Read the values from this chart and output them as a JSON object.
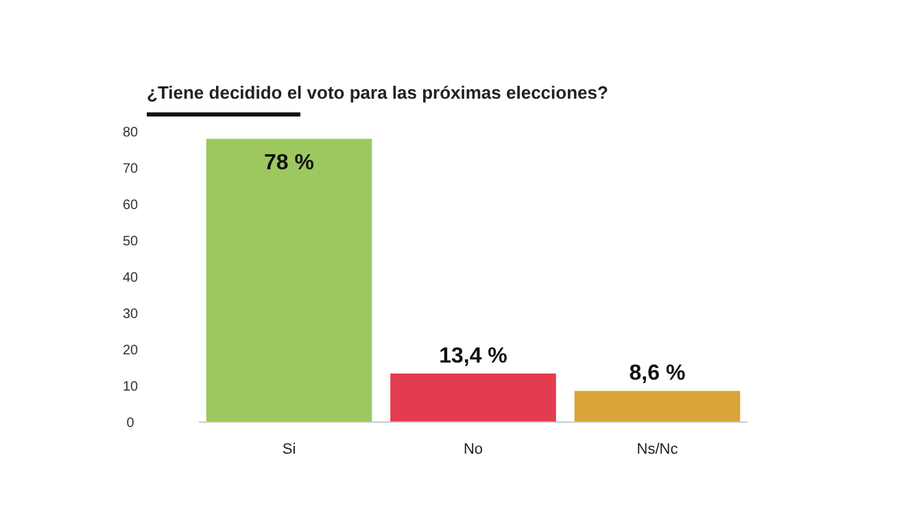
{
  "chart_data": {
    "type": "bar",
    "title": "¿Tiene decidido el voto para las próximas elecciones?",
    "categories": [
      "Si",
      "No",
      "Ns/Nc"
    ],
    "values": [
      78,
      13.4,
      8.6
    ],
    "colors": [
      "#9dc85f",
      "#e33c4f",
      "#d9a43a"
    ],
    "value_labels": [
      "78 %",
      "13,4 %",
      "8,6 %"
    ],
    "ylim": [
      0,
      80
    ],
    "yticks": [
      0,
      10,
      20,
      30,
      40,
      50,
      60,
      70,
      80
    ]
  }
}
